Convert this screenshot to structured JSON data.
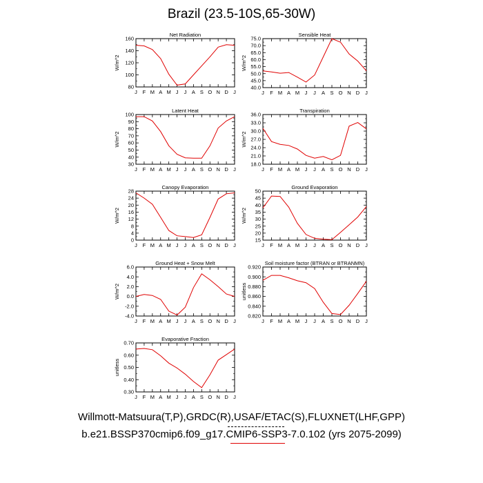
{
  "page": {
    "title": "Brazil (23.5-10S,65-30W)",
    "footer_line1": "Willmott-Matsuura(T,P),GRDC(R),USAF/ETAC(S),FLUXNET(LHF,GPP)",
    "footer_line2": "b.e21.BSSP370cmip6.f09_g17.CMIP6-SSP3-7.0.102 (yrs 2075-2099)",
    "line_color": "#e00000"
  },
  "chart_data": [
    {
      "type": "line",
      "title": "Net Radiation",
      "ylabel": "W/m^2",
      "x": [
        "J",
        "F",
        "M",
        "A",
        "M",
        "J",
        "J",
        "A",
        "S",
        "O",
        "N",
        "D",
        "J"
      ],
      "y": [
        149,
        148,
        142,
        127,
        101,
        83,
        85,
        100,
        115,
        130,
        146,
        150,
        149
      ],
      "ylim": [
        80,
        160
      ],
      "yticks": [
        "80",
        "100",
        "120",
        "140",
        "160"
      ]
    },
    {
      "type": "line",
      "title": "Sensible Heat",
      "ylabel": "W/m^2",
      "x": [
        "J",
        "F",
        "M",
        "A",
        "M",
        "J",
        "J",
        "A",
        "S",
        "O",
        "N",
        "D",
        "J"
      ],
      "y": [
        52,
        51.2,
        50.3,
        50.8,
        47.5,
        44,
        49,
        62,
        75,
        72.5,
        64,
        59,
        52
      ],
      "ylim": [
        40,
        75
      ],
      "yticks": [
        "40.0",
        "45.0",
        "50.0",
        "55.0",
        "60.0",
        "65.0",
        "70.0",
        "75.0"
      ]
    },
    {
      "type": "line",
      "title": "Latent Heat",
      "ylabel": "W/m^2",
      "x": [
        "J",
        "F",
        "M",
        "A",
        "M",
        "J",
        "J",
        "A",
        "S",
        "O",
        "N",
        "D",
        "J"
      ],
      "y": [
        97,
        97,
        91,
        76,
        56,
        44,
        39,
        38.5,
        38.5,
        56,
        81,
        91,
        97
      ],
      "ylim": [
        30,
        100
      ],
      "yticks": [
        "30",
        "40",
        "50",
        "60",
        "70",
        "80",
        "90",
        "100"
      ]
    },
    {
      "type": "line",
      "title": "Transpiration",
      "ylabel": "W/m^2",
      "x": [
        "J",
        "F",
        "M",
        "A",
        "M",
        "J",
        "J",
        "A",
        "S",
        "O",
        "N",
        "D",
        "J"
      ],
      "y": [
        31,
        26.2,
        25.2,
        24.8,
        23.5,
        21.2,
        20.2,
        20.8,
        19.6,
        21.2,
        31.8,
        33.1,
        30.8
      ],
      "ylim": [
        18,
        36
      ],
      "yticks": [
        "18.0",
        "21.0",
        "24.0",
        "27.0",
        "30.0",
        "33.0",
        "36.0"
      ]
    },
    {
      "type": "line",
      "title": "Canopy Evaporation",
      "ylabel": "W/m^2",
      "x": [
        "J",
        "F",
        "M",
        "A",
        "M",
        "J",
        "J",
        "A",
        "S",
        "O",
        "N",
        "D",
        "J"
      ],
      "y": [
        27,
        24,
        20.5,
        13,
        5.5,
        2.5,
        2,
        1.5,
        3,
        13,
        23.5,
        26.5,
        27
      ],
      "ylim": [
        0,
        28
      ],
      "yticks": [
        "0",
        "4",
        "8",
        "12",
        "16",
        "20",
        "24",
        "28"
      ]
    },
    {
      "type": "line",
      "title": "Ground Evaporation",
      "ylabel": "W/m^2",
      "x": [
        "J",
        "F",
        "M",
        "A",
        "M",
        "J",
        "J",
        "A",
        "S",
        "O",
        "N",
        "D",
        "J"
      ],
      "y": [
        38,
        46.5,
        46.2,
        38.5,
        27,
        19,
        16.3,
        15.7,
        15.3,
        20.5,
        26,
        31.5,
        39
      ],
      "ylim": [
        15,
        50
      ],
      "yticks": [
        "15",
        "20",
        "25",
        "30",
        "35",
        "40",
        "45",
        "50"
      ]
    },
    {
      "type": "line",
      "title": "Ground Heat + Snow Melt",
      "ylabel": "W/m^2",
      "x": [
        "J",
        "F",
        "M",
        "A",
        "M",
        "J",
        "J",
        "A",
        "S",
        "O",
        "N",
        "D",
        "J"
      ],
      "y": [
        0.0,
        0.4,
        0.2,
        -0.6,
        -3.0,
        -3.8,
        -2.2,
        1.8,
        4.6,
        3.4,
        2.0,
        0.5,
        0.0
      ],
      "ylim": [
        -4,
        6
      ],
      "yticks": [
        "-4.0",
        "-2.0",
        "0.0",
        "2.0",
        "4.0",
        "6.0"
      ]
    },
    {
      "type": "line",
      "title": "Soil moisture factor (BTRAN or BTRANMN)",
      "ylabel": "unitless",
      "x": [
        "J",
        "F",
        "M",
        "A",
        "M",
        "J",
        "J",
        "A",
        "S",
        "O",
        "N",
        "D",
        "J"
      ],
      "y": [
        0.893,
        0.903,
        0.903,
        0.898,
        0.892,
        0.888,
        0.876,
        0.848,
        0.825,
        0.823,
        0.842,
        0.866,
        0.891
      ],
      "ylim": [
        0.82,
        0.92
      ],
      "yticks": [
        "0.820",
        "0.840",
        "0.860",
        "0.880",
        "0.900",
        "0.920"
      ]
    },
    {
      "type": "line",
      "title": "Evaporative Fraction",
      "ylabel": "unitless",
      "x": [
        "J",
        "F",
        "M",
        "A",
        "M",
        "J",
        "J",
        "A",
        "S",
        "O",
        "N",
        "D",
        "J"
      ],
      "y": [
        0.65,
        0.655,
        0.645,
        0.595,
        0.535,
        0.495,
        0.445,
        0.385,
        0.335,
        0.44,
        0.56,
        0.605,
        0.65
      ],
      "ylim": [
        0.3,
        0.7
      ],
      "yticks": [
        "0.30",
        "0.40",
        "0.50",
        "0.60",
        "0.70"
      ]
    }
  ]
}
